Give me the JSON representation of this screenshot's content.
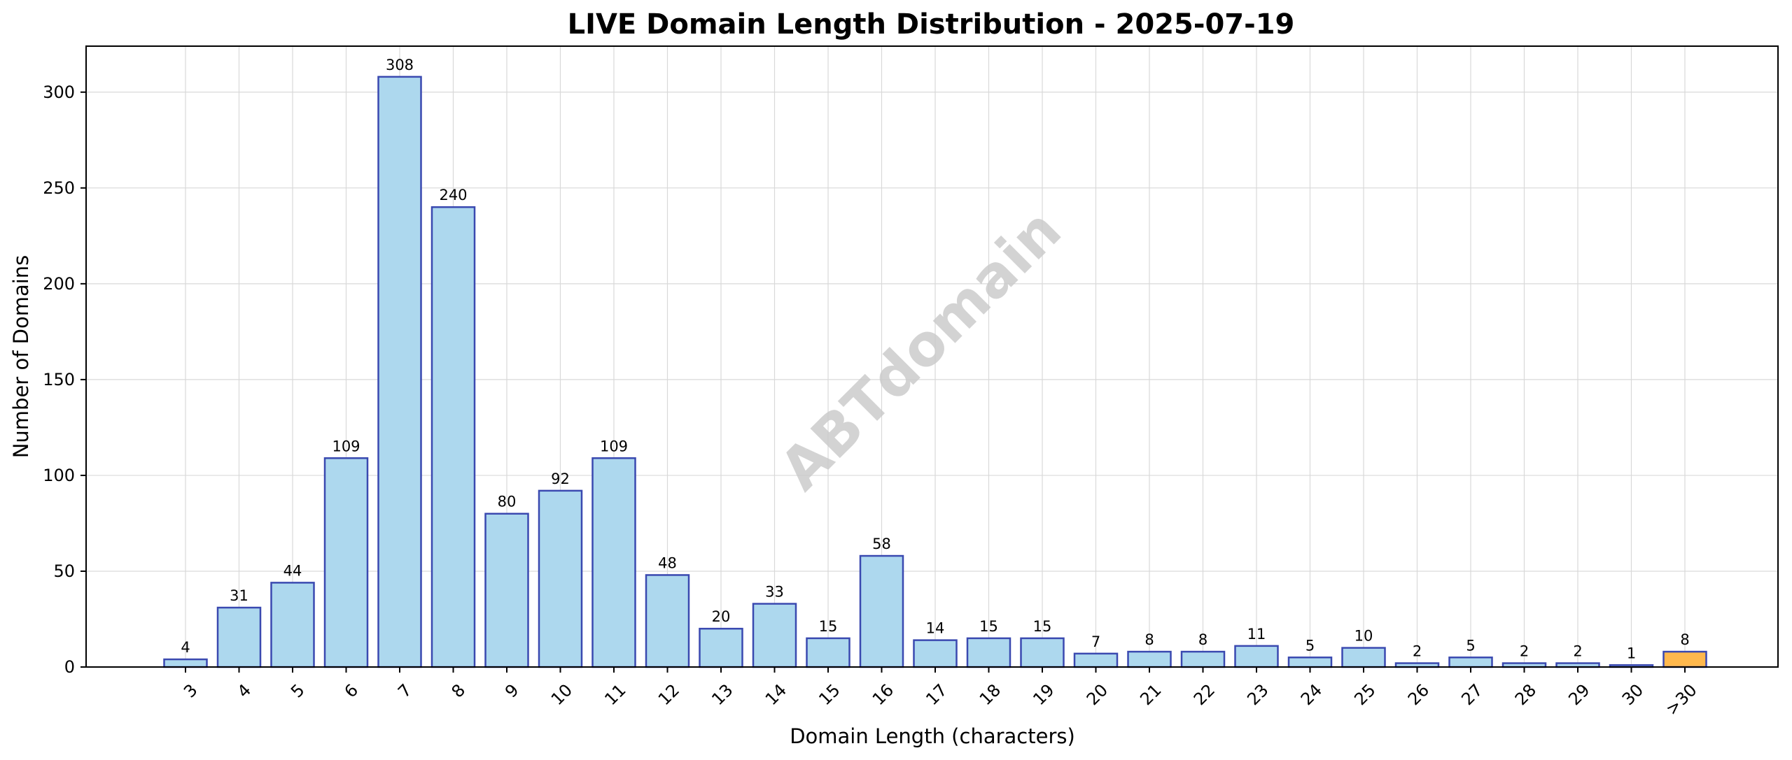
{
  "chart_data": {
    "type": "bar",
    "title": "LIVE Domain Length Distribution - 2025-07-19",
    "xlabel": "Domain Length (characters)",
    "ylabel": "Number of Domains",
    "categories": [
      "3",
      "4",
      "5",
      "6",
      "7",
      "8",
      "9",
      "10",
      "11",
      "12",
      "13",
      "14",
      "15",
      "16",
      "17",
      "18",
      "19",
      "20",
      "21",
      "22",
      "23",
      "24",
      "25",
      "26",
      "27",
      "28",
      "29",
      "30",
      ">30"
    ],
    "values": [
      4,
      31,
      44,
      109,
      308,
      240,
      80,
      92,
      109,
      48,
      20,
      33,
      15,
      58,
      14,
      15,
      15,
      7,
      8,
      8,
      11,
      5,
      10,
      2,
      5,
      2,
      2,
      1,
      8
    ],
    "highlight_category": ">30",
    "bar_color": "#add8ee",
    "bar_edge_color": "#3a49b0",
    "highlight_color": "#ffb84d",
    "ylim": [
      0,
      324
    ],
    "yticks": [
      0,
      50,
      100,
      150,
      200,
      250,
      300
    ],
    "grid": true,
    "watermark": "ABTdomain"
  }
}
